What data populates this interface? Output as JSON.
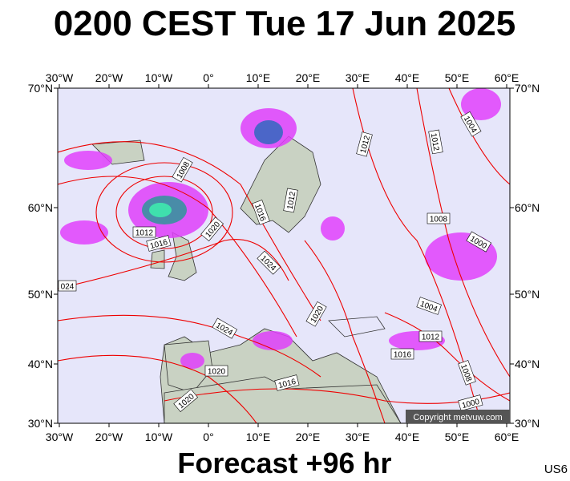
{
  "header": {
    "title": "0200 CEST Tue 17 Jun 2025"
  },
  "map": {
    "lon_labels": [
      "30°W",
      "20°W",
      "10°W",
      "0°",
      "10°E",
      "20°E",
      "30°E",
      "40°E",
      "50°E",
      "60°E"
    ],
    "lat_labels": [
      "70°N",
      "60°N",
      "50°N",
      "40°N",
      "30°N"
    ],
    "isobar_labels": [
      "1008",
      "1012",
      "1016",
      "1020",
      "1016",
      "1012",
      "1024",
      "024",
      "1020",
      "1024",
      "1020",
      "1020",
      "1016",
      "1012",
      "1012",
      "1004",
      "1008",
      "1000",
      "1004",
      "1012",
      "1016",
      "1008",
      "1000"
    ],
    "copyright": "Copyright metvuw.com"
  },
  "footer": {
    "forecast": "Forecast +96 hr",
    "code": "US6"
  }
}
